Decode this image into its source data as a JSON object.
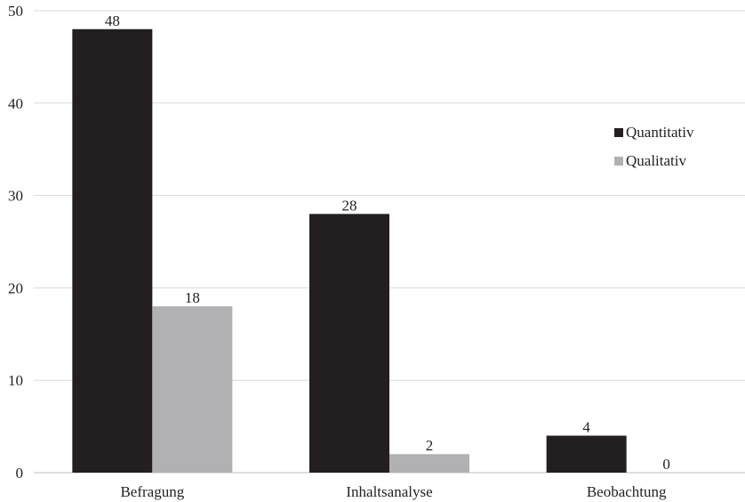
{
  "chart_data": {
    "type": "bar",
    "categories": [
      "Befragung",
      "Inhaltsanalyse",
      "Beobachtung"
    ],
    "series": [
      {
        "name": "Quantitativ",
        "values": [
          48,
          28,
          4
        ],
        "color": "#231f20"
      },
      {
        "name": "Qualitativ",
        "values": [
          18,
          2,
          0
        ],
        "color": "#b1b1b3"
      }
    ],
    "yticks": [
      "0",
      "10",
      "20",
      "30",
      "40",
      "50"
    ],
    "ylim": [
      0,
      50
    ],
    "grid": true,
    "legend_position": "right",
    "title": "",
    "xlabel": "",
    "ylabel": ""
  }
}
